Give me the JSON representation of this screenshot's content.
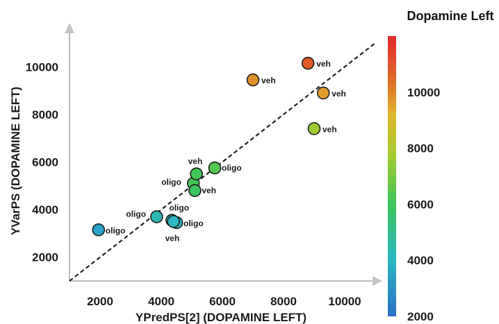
{
  "chart_data": {
    "type": "scatter",
    "xlabel": "YPredPS[2] (DOPAMINE LEFT)",
    "ylabel": "YVarPS (DOPAMINE LEFT)",
    "xlim": [
      1000,
      11000
    ],
    "ylim": [
      1000,
      11000
    ],
    "x_ticks": [
      2000,
      4000,
      6000,
      8000,
      10000
    ],
    "y_ticks": [
      2000,
      4000,
      6000,
      8000,
      10000
    ],
    "reference_line": {
      "style": "dashed",
      "color": "#222222",
      "from": [
        1000,
        1000
      ],
      "to": [
        11000,
        11000
      ]
    },
    "colorbar": {
      "title": "Dopamine Left",
      "range": [
        2000,
        12000
      ],
      "ticks": [
        2000,
        4000,
        6000,
        8000,
        10000
      ],
      "colors": [
        "#2b6fc2",
        "#29b7c6",
        "#3cc65a",
        "#a6cc2e",
        "#e0b52a",
        "#e0622a",
        "#e02a2a"
      ]
    },
    "points": [
      {
        "x": 1950,
        "y": 3150,
        "label": "oligo",
        "value": 3400
      },
      {
        "x": 3850,
        "y": 3700,
        "label": "oligo",
        "value": 4300
      },
      {
        "x": 4350,
        "y": 3550,
        "label": "oligo",
        "value": 4200
      },
      {
        "x": 4500,
        "y": 3450,
        "label": "oligo",
        "value": 4000
      },
      {
        "x": 4400,
        "y": 3500,
        "label": "veh",
        "value": 4100
      },
      {
        "x": 5050,
        "y": 5100,
        "label": "oligo",
        "value": 6100
      },
      {
        "x": 5100,
        "y": 4800,
        "label": "veh",
        "value": 5900
      },
      {
        "x": 5150,
        "y": 5500,
        "label": "veh",
        "value": 6100
      },
      {
        "x": 5750,
        "y": 5750,
        "label": "oligo",
        "value": 6400
      },
      {
        "x": 7000,
        "y": 9450,
        "label": "veh",
        "value": 9800
      },
      {
        "x": 8800,
        "y": 10150,
        "label": "veh",
        "value": 10800
      },
      {
        "x": 9300,
        "y": 8900,
        "label": "veh",
        "value": 9600
      },
      {
        "x": 9000,
        "y": 7400,
        "label": "veh",
        "value": 7700
      }
    ]
  }
}
